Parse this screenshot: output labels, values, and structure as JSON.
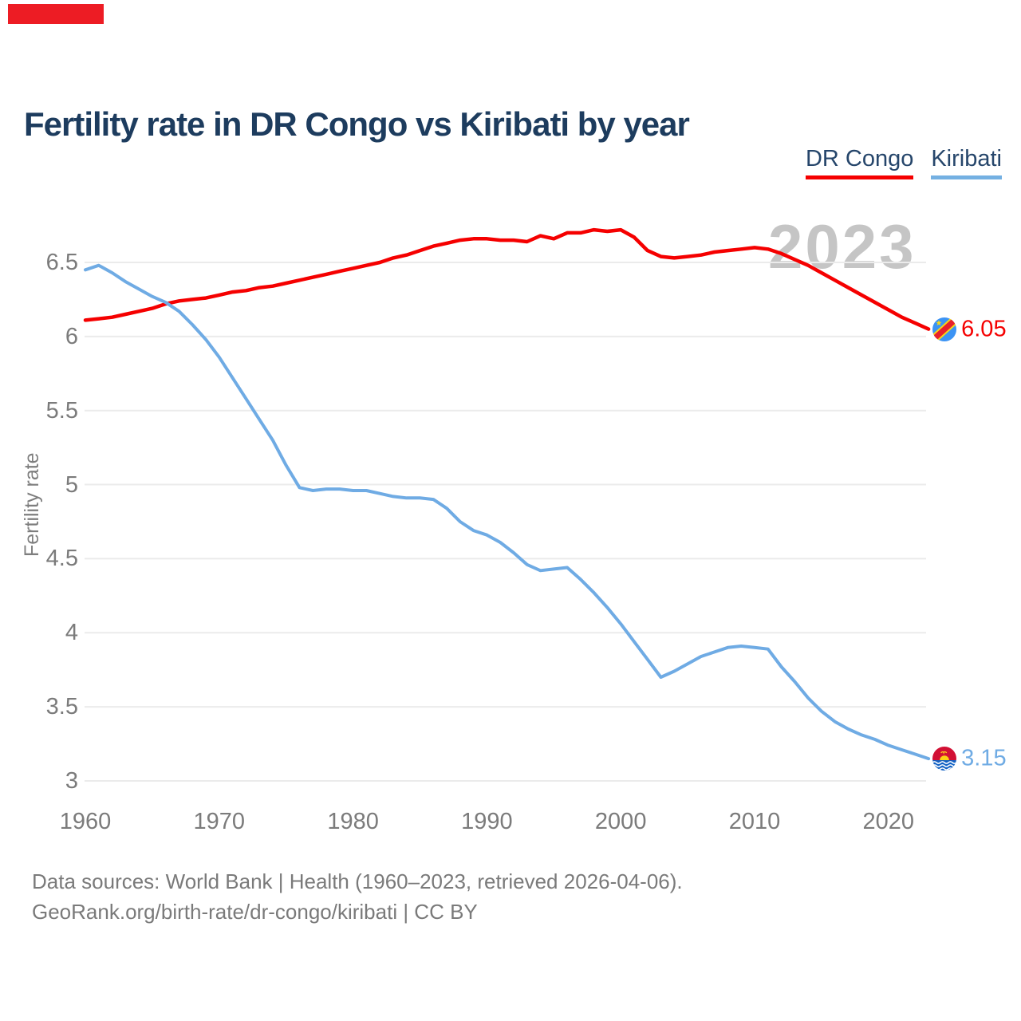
{
  "decoration": {
    "top_left_bar_color": "#ed1c24"
  },
  "header": {
    "title": "Fertility rate in DR Congo vs Kiribati by year"
  },
  "legend": [
    {
      "label": "DR Congo",
      "color": "#f50000"
    },
    {
      "label": "Kiribati",
      "color": "#74b0e2"
    }
  ],
  "watermark": {
    "text": "2023"
  },
  "y_axis": {
    "label": "Fertility rate",
    "ticks": [
      "6.5",
      "6",
      "5.5",
      "5",
      "4.5",
      "4",
      "3.5",
      "3"
    ]
  },
  "x_axis": {
    "ticks": [
      "1960",
      "1970",
      "1980",
      "1990",
      "2000",
      "2010",
      "2020"
    ]
  },
  "end_labels": [
    {
      "series": "DR Congo",
      "value": "6.05",
      "color": "#f50000"
    },
    {
      "series": "Kiribati",
      "value": "3.15",
      "color": "#6fabe4"
    }
  ],
  "footer": {
    "line1": "Data sources: World Bank | Health (1960–2023, retrieved 2026-04-06).",
    "line2": "GeoRank.org/birth-rate/dr-congo/kiribati | CC BY"
  },
  "chart_data": {
    "type": "line",
    "title": "Fertility rate in DR Congo vs Kiribati by year",
    "xlabel": "",
    "ylabel": "Fertility rate",
    "ylim": [
      3,
      6.5
    ],
    "xlim": [
      1960,
      2023
    ],
    "grid": true,
    "legend_position": "top-right",
    "watermark": "2023",
    "x": [
      1960,
      1961,
      1962,
      1963,
      1964,
      1965,
      1966,
      1967,
      1968,
      1969,
      1970,
      1971,
      1972,
      1973,
      1974,
      1975,
      1976,
      1977,
      1978,
      1979,
      1980,
      1981,
      1982,
      1983,
      1984,
      1985,
      1986,
      1987,
      1988,
      1989,
      1990,
      1991,
      1992,
      1993,
      1994,
      1995,
      1996,
      1997,
      1998,
      1999,
      2000,
      2001,
      2002,
      2003,
      2004,
      2005,
      2006,
      2007,
      2008,
      2009,
      2010,
      2011,
      2012,
      2013,
      2014,
      2015,
      2016,
      2017,
      2018,
      2019,
      2020,
      2021,
      2022,
      2023
    ],
    "series": [
      {
        "name": "DR Congo",
        "color": "#f50000",
        "values": [
          6.11,
          6.12,
          6.13,
          6.15,
          6.17,
          6.19,
          6.22,
          6.24,
          6.25,
          6.26,
          6.28,
          6.3,
          6.31,
          6.33,
          6.34,
          6.36,
          6.38,
          6.4,
          6.42,
          6.44,
          6.46,
          6.48,
          6.5,
          6.53,
          6.55,
          6.58,
          6.61,
          6.63,
          6.65,
          6.66,
          6.66,
          6.65,
          6.65,
          6.64,
          6.68,
          6.66,
          6.7,
          6.7,
          6.72,
          6.71,
          6.72,
          6.67,
          6.58,
          6.54,
          6.53,
          6.54,
          6.55,
          6.57,
          6.58,
          6.59,
          6.6,
          6.59,
          6.56,
          6.52,
          6.48,
          6.43,
          6.38,
          6.33,
          6.28,
          6.23,
          6.18,
          6.13,
          6.09,
          6.05
        ]
      },
      {
        "name": "Kiribati",
        "color": "#6fabe4",
        "values": [
          6.45,
          6.48,
          6.43,
          6.37,
          6.32,
          6.27,
          6.23,
          6.17,
          6.08,
          5.98,
          5.86,
          5.72,
          5.58,
          5.44,
          5.3,
          5.13,
          4.98,
          4.96,
          4.97,
          4.97,
          4.96,
          4.96,
          4.94,
          4.92,
          4.91,
          4.91,
          4.9,
          4.84,
          4.75,
          4.69,
          4.66,
          4.61,
          4.54,
          4.46,
          4.42,
          4.43,
          4.44,
          4.36,
          4.27,
          4.17,
          4.06,
          3.94,
          3.82,
          3.7,
          3.74,
          3.79,
          3.84,
          3.87,
          3.9,
          3.91,
          3.9,
          3.89,
          3.77,
          3.67,
          3.56,
          3.47,
          3.4,
          3.35,
          3.31,
          3.28,
          3.24,
          3.21,
          3.18,
          3.15
        ]
      }
    ]
  }
}
